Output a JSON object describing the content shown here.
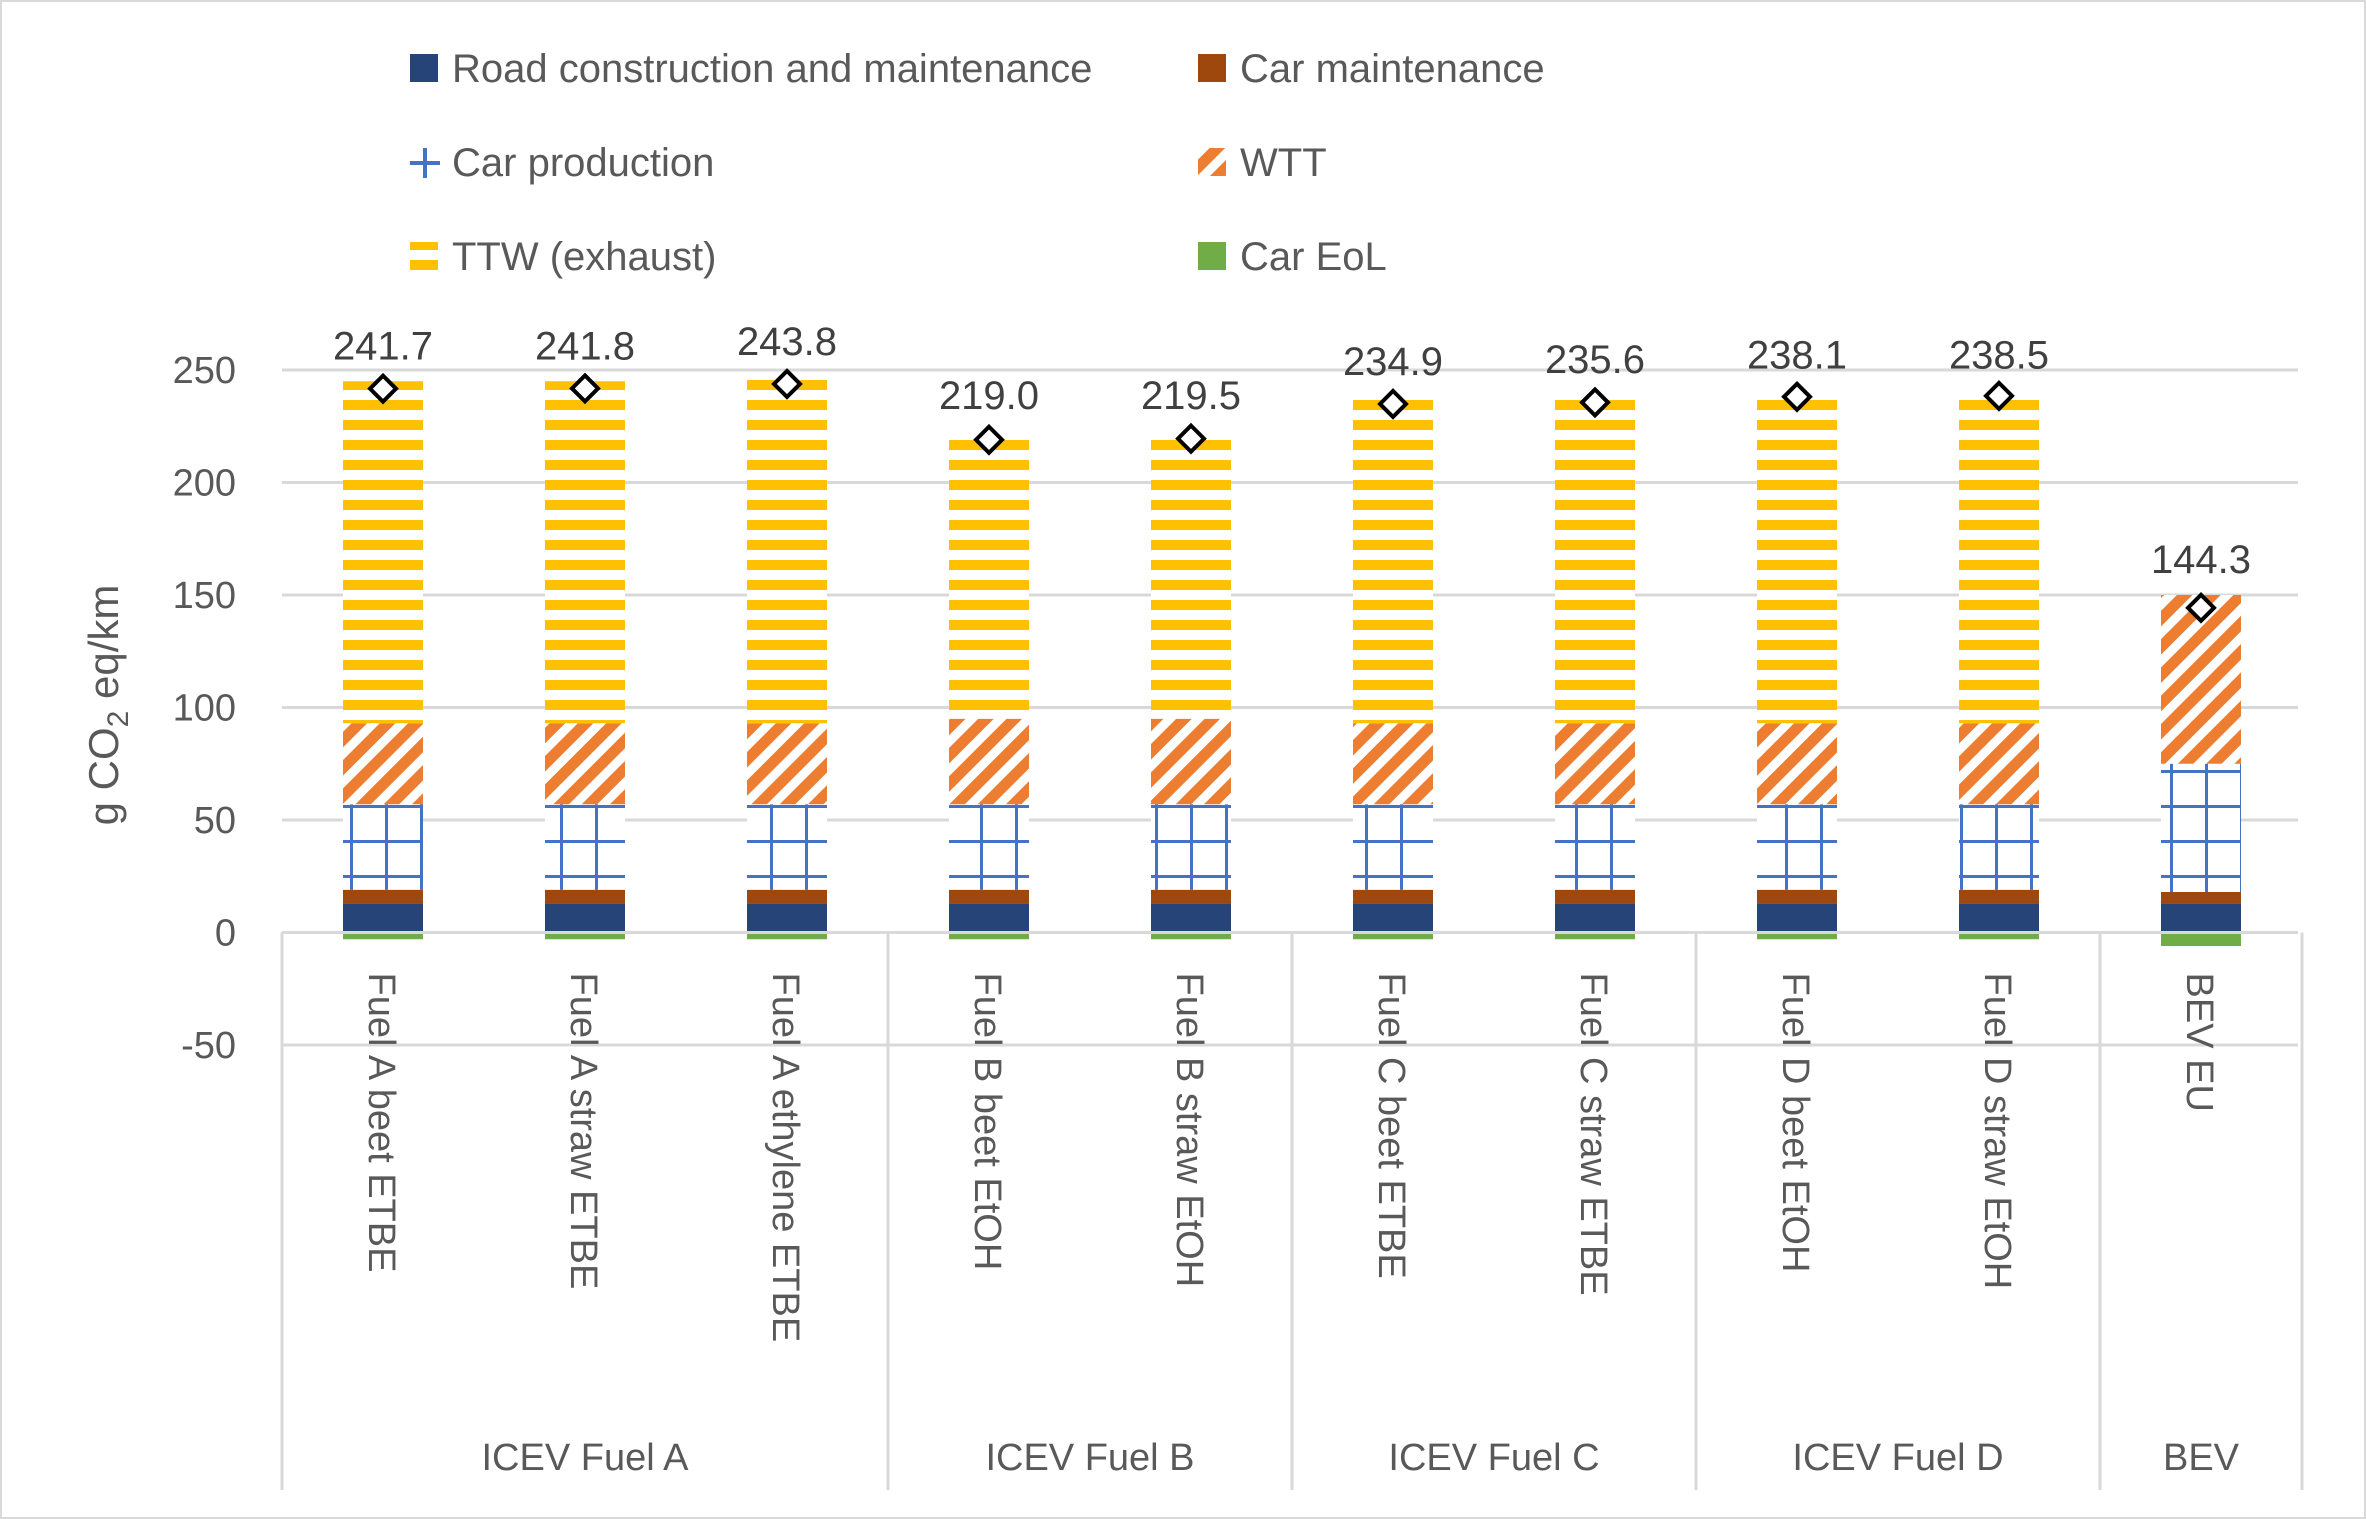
{
  "chart_data": {
    "type": "bar",
    "stacked": true,
    "ylabel_parts": [
      "g CO",
      "2",
      " eq/km"
    ],
    "ylim": [
      -50,
      250
    ],
    "yticks": [
      -50,
      0,
      50,
      100,
      150,
      200,
      250
    ],
    "ytick_labels": [
      "-50",
      "0",
      "50",
      "100",
      "150",
      "200",
      "250"
    ],
    "grid": true,
    "legend_position": "top",
    "categories": [
      "Fuel A beet ETBE",
      "Fuel A straw ETBE",
      "Fuel A ethylene ETBE",
      "Fuel B beet EtOH",
      "Fuel B straw EtOH",
      "Fuel C beet ETBE",
      "Fuel C straw ETBE",
      "Fuel D beet EtOH",
      "Fuel D straw EtOH",
      "BEV EU"
    ],
    "groups": [
      {
        "label": "ICEV Fuel A",
        "start": 0,
        "end": 2
      },
      {
        "label": "ICEV Fuel B",
        "start": 3,
        "end": 4
      },
      {
        "label": "ICEV Fuel C",
        "start": 5,
        "end": 6
      },
      {
        "label": "ICEV Fuel D",
        "start": 7,
        "end": 8
      },
      {
        "label": "BEV",
        "start": 9,
        "end": 9
      }
    ],
    "series": [
      {
        "name": "Road construction and maintenance",
        "color": "#264478",
        "pattern": "solid",
        "values": [
          13,
          13,
          13,
          13,
          13,
          13,
          13,
          13,
          13,
          13
        ]
      },
      {
        "name": "Car maintenance",
        "color": "#9E480E",
        "pattern": "solid",
        "values": [
          6,
          6,
          6,
          6,
          6,
          6,
          6,
          6,
          6,
          5
        ]
      },
      {
        "name": "Car production",
        "color": "#4472C4",
        "pattern": "grid",
        "values": [
          38,
          38,
          38,
          38,
          38,
          38,
          38,
          38,
          38,
          57
        ]
      },
      {
        "name": "WTT",
        "color": "#ED7D31",
        "pattern": "diagonal",
        "values": [
          36,
          36,
          36,
          38,
          38,
          36,
          36,
          36,
          36,
          75
        ]
      },
      {
        "name": "TTW (exhaust)",
        "color": "#FFC000",
        "pattern": "horizontal",
        "values": [
          152,
          152,
          154,
          128,
          128,
          145,
          146,
          148,
          148,
          0
        ]
      },
      {
        "name": "Car EoL",
        "color": "#70AD47",
        "pattern": "solid",
        "values": [
          -3,
          -3,
          -3,
          -3,
          -3,
          -3,
          -3,
          -3,
          -3,
          -6
        ]
      }
    ],
    "totals": [
      241.7,
      241.8,
      243.8,
      219.0,
      219.5,
      234.9,
      235.6,
      238.1,
      238.5,
      144.3
    ],
    "total_labels": [
      "241.7",
      "241.8",
      "243.8",
      "219.0",
      "219.5",
      "234.9",
      "235.6",
      "238.1",
      "238.5",
      "144.3"
    ],
    "legend_order": [
      0,
      1,
      2,
      3,
      4,
      5
    ]
  }
}
